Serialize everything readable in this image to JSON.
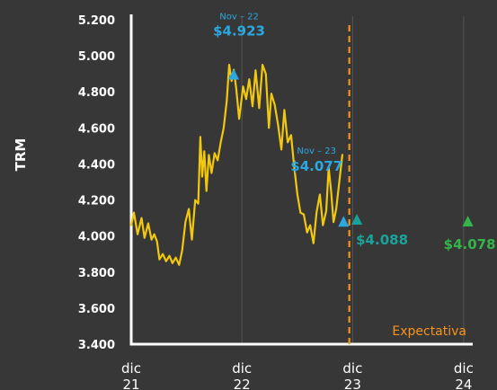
{
  "chart_data": {
    "type": "line",
    "ylabel": "TRM",
    "ylim": [
      3400,
      5200
    ],
    "y_ticks": [
      "5.200",
      "5.000",
      "4.800",
      "4.600",
      "4.400",
      "4.200",
      "4.000",
      "3.800",
      "3.600",
      "3.400"
    ],
    "y_tick_values": [
      5200,
      5000,
      4800,
      4600,
      4400,
      4200,
      4000,
      3800,
      3600,
      3400
    ],
    "x_ticks": [
      {
        "line1": "dic",
        "line2": "21",
        "date": "2021-12"
      },
      {
        "line1": "dic",
        "line2": "22",
        "date": "2022-12"
      },
      {
        "line1": "dic",
        "line2": "23",
        "date": "2023-12"
      },
      {
        "line1": "dic",
        "line2": "24",
        "date": "2024-12"
      }
    ],
    "x_range": [
      "2021-12-01",
      "2024-12-31"
    ],
    "grid": "vertical at year ticks",
    "colors": {
      "background": "#373737",
      "line": "#f2c80f",
      "annotation_blue": "#2ba8e0",
      "annotation_teal": "#1aa39a",
      "annotation_green": "#33b54a",
      "expectation": "#f7941d",
      "axis": "#ffffff",
      "grid": "#555555"
    },
    "series": [
      {
        "values": [
          [
            "2021-12-01",
            4060
          ],
          [
            "2021-12-10",
            4130
          ],
          [
            "2021-12-22",
            4010
          ],
          [
            "2022-01-04",
            4100
          ],
          [
            "2022-01-14",
            3990
          ],
          [
            "2022-01-26",
            4070
          ],
          [
            "2022-02-06",
            3980
          ],
          [
            "2022-02-15",
            4010
          ],
          [
            "2022-02-24",
            3970
          ],
          [
            "2022-03-04",
            3870
          ],
          [
            "2022-03-15",
            3900
          ],
          [
            "2022-03-26",
            3860
          ],
          [
            "2022-04-06",
            3890
          ],
          [
            "2022-04-16",
            3850
          ],
          [
            "2022-04-27",
            3880
          ],
          [
            "2022-05-08",
            3840
          ],
          [
            "2022-05-18",
            3920
          ],
          [
            "2022-05-29",
            4080
          ],
          [
            "2022-06-09",
            4150
          ],
          [
            "2022-06-19",
            3980
          ],
          [
            "2022-06-30",
            4200
          ],
          [
            "2022-07-10",
            4180
          ],
          [
            "2022-07-17",
            4550
          ],
          [
            "2022-07-23",
            4330
          ],
          [
            "2022-07-30",
            4470
          ],
          [
            "2022-08-06",
            4250
          ],
          [
            "2022-08-14",
            4450
          ],
          [
            "2022-08-23",
            4350
          ],
          [
            "2022-09-02",
            4460
          ],
          [
            "2022-09-12",
            4420
          ],
          [
            "2022-09-22",
            4520
          ],
          [
            "2022-10-02",
            4600
          ],
          [
            "2022-10-12",
            4750
          ],
          [
            "2022-10-20",
            4950
          ],
          [
            "2022-10-28",
            4860
          ],
          [
            "2022-11-04",
            4923
          ],
          [
            "2022-11-12",
            4820
          ],
          [
            "2022-11-22",
            4650
          ],
          [
            "2022-12-05",
            4830
          ],
          [
            "2022-12-15",
            4760
          ],
          [
            "2022-12-25",
            4870
          ],
          [
            "2023-01-05",
            4720
          ],
          [
            "2023-01-15",
            4920
          ],
          [
            "2023-01-27",
            4710
          ],
          [
            "2023-02-07",
            4950
          ],
          [
            "2023-02-18",
            4900
          ],
          [
            "2023-02-28",
            4600
          ],
          [
            "2023-03-08",
            4790
          ],
          [
            "2023-03-19",
            4730
          ],
          [
            "2023-03-30",
            4620
          ],
          [
            "2023-04-10",
            4480
          ],
          [
            "2023-04-20",
            4700
          ],
          [
            "2023-05-01",
            4520
          ],
          [
            "2023-05-12",
            4560
          ],
          [
            "2023-05-22",
            4390
          ],
          [
            "2023-06-02",
            4230
          ],
          [
            "2023-06-12",
            4130
          ],
          [
            "2023-06-23",
            4120
          ],
          [
            "2023-07-04",
            4020
          ],
          [
            "2023-07-14",
            4060
          ],
          [
            "2023-07-25",
            3960
          ],
          [
            "2023-08-04",
            4130
          ],
          [
            "2023-08-15",
            4230
          ],
          [
            "2023-08-25",
            4060
          ],
          [
            "2023-09-05",
            4140
          ],
          [
            "2023-09-13",
            4380
          ],
          [
            "2023-09-21",
            4250
          ],
          [
            "2023-09-29",
            4077
          ],
          [
            "2023-10-08",
            4150
          ],
          [
            "2023-10-18",
            4300
          ],
          [
            "2023-10-28",
            4450
          ]
        ]
      }
    ],
    "annotations": [
      {
        "date": "2022-11-04",
        "value": 4923,
        "label_top": "Nov – 22",
        "label_value": "$4.923",
        "color": "blue",
        "marker": "triangle"
      },
      {
        "date": "2023-11-01",
        "value": 4077,
        "label_top": "Nov – 23",
        "label_value": "$4.077",
        "color": "blue",
        "marker": "triangle"
      },
      {
        "date": "2023-12-15",
        "value": 4088,
        "label_value": "$4.088",
        "color": "teal",
        "marker": "triangle"
      },
      {
        "date": "2024-12-15",
        "value": 4078,
        "label_value": "$4.078",
        "color": "green",
        "marker": "triangle"
      }
    ],
    "expectation": {
      "date": "2023-11-20",
      "label": "Expectativa"
    }
  }
}
